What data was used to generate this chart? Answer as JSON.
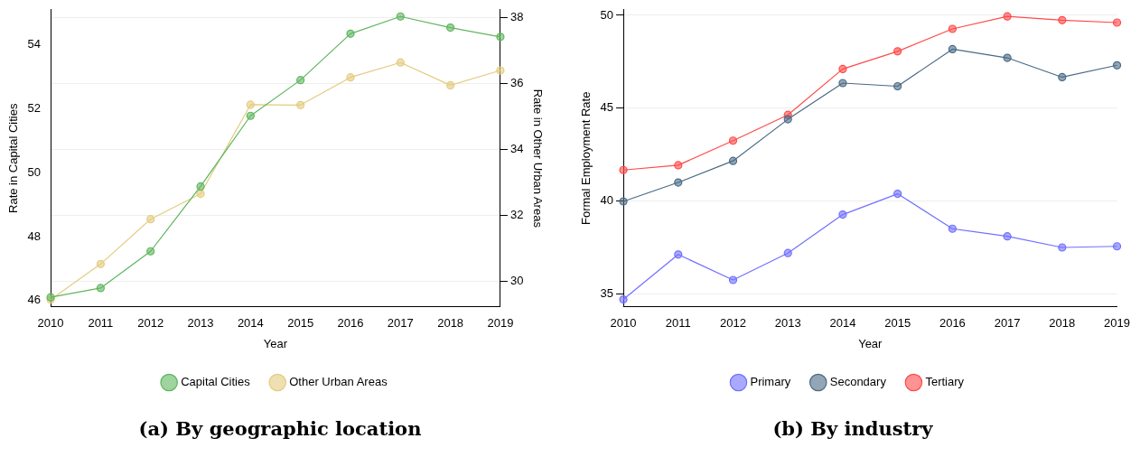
{
  "chart_data": [
    {
      "type": "line",
      "title": "(a) By geographic location",
      "xlabel": "Year",
      "ylabel": "Rate in Capital Cities",
      "y2label": "Rate in Other Urban Areas",
      "categories": [
        "2010",
        "2011",
        "2012",
        "2013",
        "2014",
        "2015",
        "2016",
        "2017",
        "2018",
        "2019"
      ],
      "series": [
        {
          "name": "Capital Cities",
          "color": "#5fb55f",
          "values": [
            46.1,
            46.39,
            47.54,
            49.57,
            51.78,
            52.9,
            54.35,
            54.89,
            54.54,
            54.25
          ]
        },
        {
          "name": "Other Urban Areas",
          "color": "#e3cc7e",
          "axis": "y2",
          "values": [
            29.44,
            30.52,
            31.88,
            32.65,
            35.35,
            35.34,
            36.18,
            36.63,
            35.94,
            36.39
          ]
        }
      ],
      "ylim": [
        45.8,
        55.1
      ],
      "yticks": [
        46,
        48,
        50,
        52,
        54
      ],
      "y2lim": [
        29.22,
        38.23
      ],
      "y2ticks": [
        30,
        32,
        34,
        36,
        38
      ],
      "grid": true,
      "legend": "bottom",
      "marker": "circle",
      "line_style": "solid"
    },
    {
      "type": "line",
      "title": "(b) By industry",
      "xlabel": "Year",
      "ylabel": "Formal Employment Rate",
      "categories": [
        "2010",
        "2011",
        "2012",
        "2013",
        "2014",
        "2015",
        "2016",
        "2017",
        "2018",
        "2019"
      ],
      "series": [
        {
          "name": "Primary",
          "color": "#7070ff",
          "values": [
            34.7,
            37.12,
            35.75,
            37.2,
            39.27,
            40.39,
            38.51,
            38.1,
            37.5,
            37.56
          ]
        },
        {
          "name": "Secondary",
          "color": "#4a6a86",
          "values": [
            39.98,
            41.0,
            42.16,
            44.4,
            46.35,
            46.18,
            48.18,
            47.71,
            46.67,
            47.31
          ]
        },
        {
          "name": "Tertiary",
          "color": "#ff4a4a",
          "values": [
            41.67,
            41.93,
            43.25,
            44.64,
            47.11,
            48.06,
            49.27,
            49.94,
            49.74,
            49.61
          ]
        }
      ],
      "ylim": [
        34.3,
        50.3
      ],
      "yticks": [
        35,
        40,
        45,
        50
      ],
      "grid": true,
      "legend": "bottom",
      "marker": "circle",
      "line_style": "solid"
    }
  ]
}
